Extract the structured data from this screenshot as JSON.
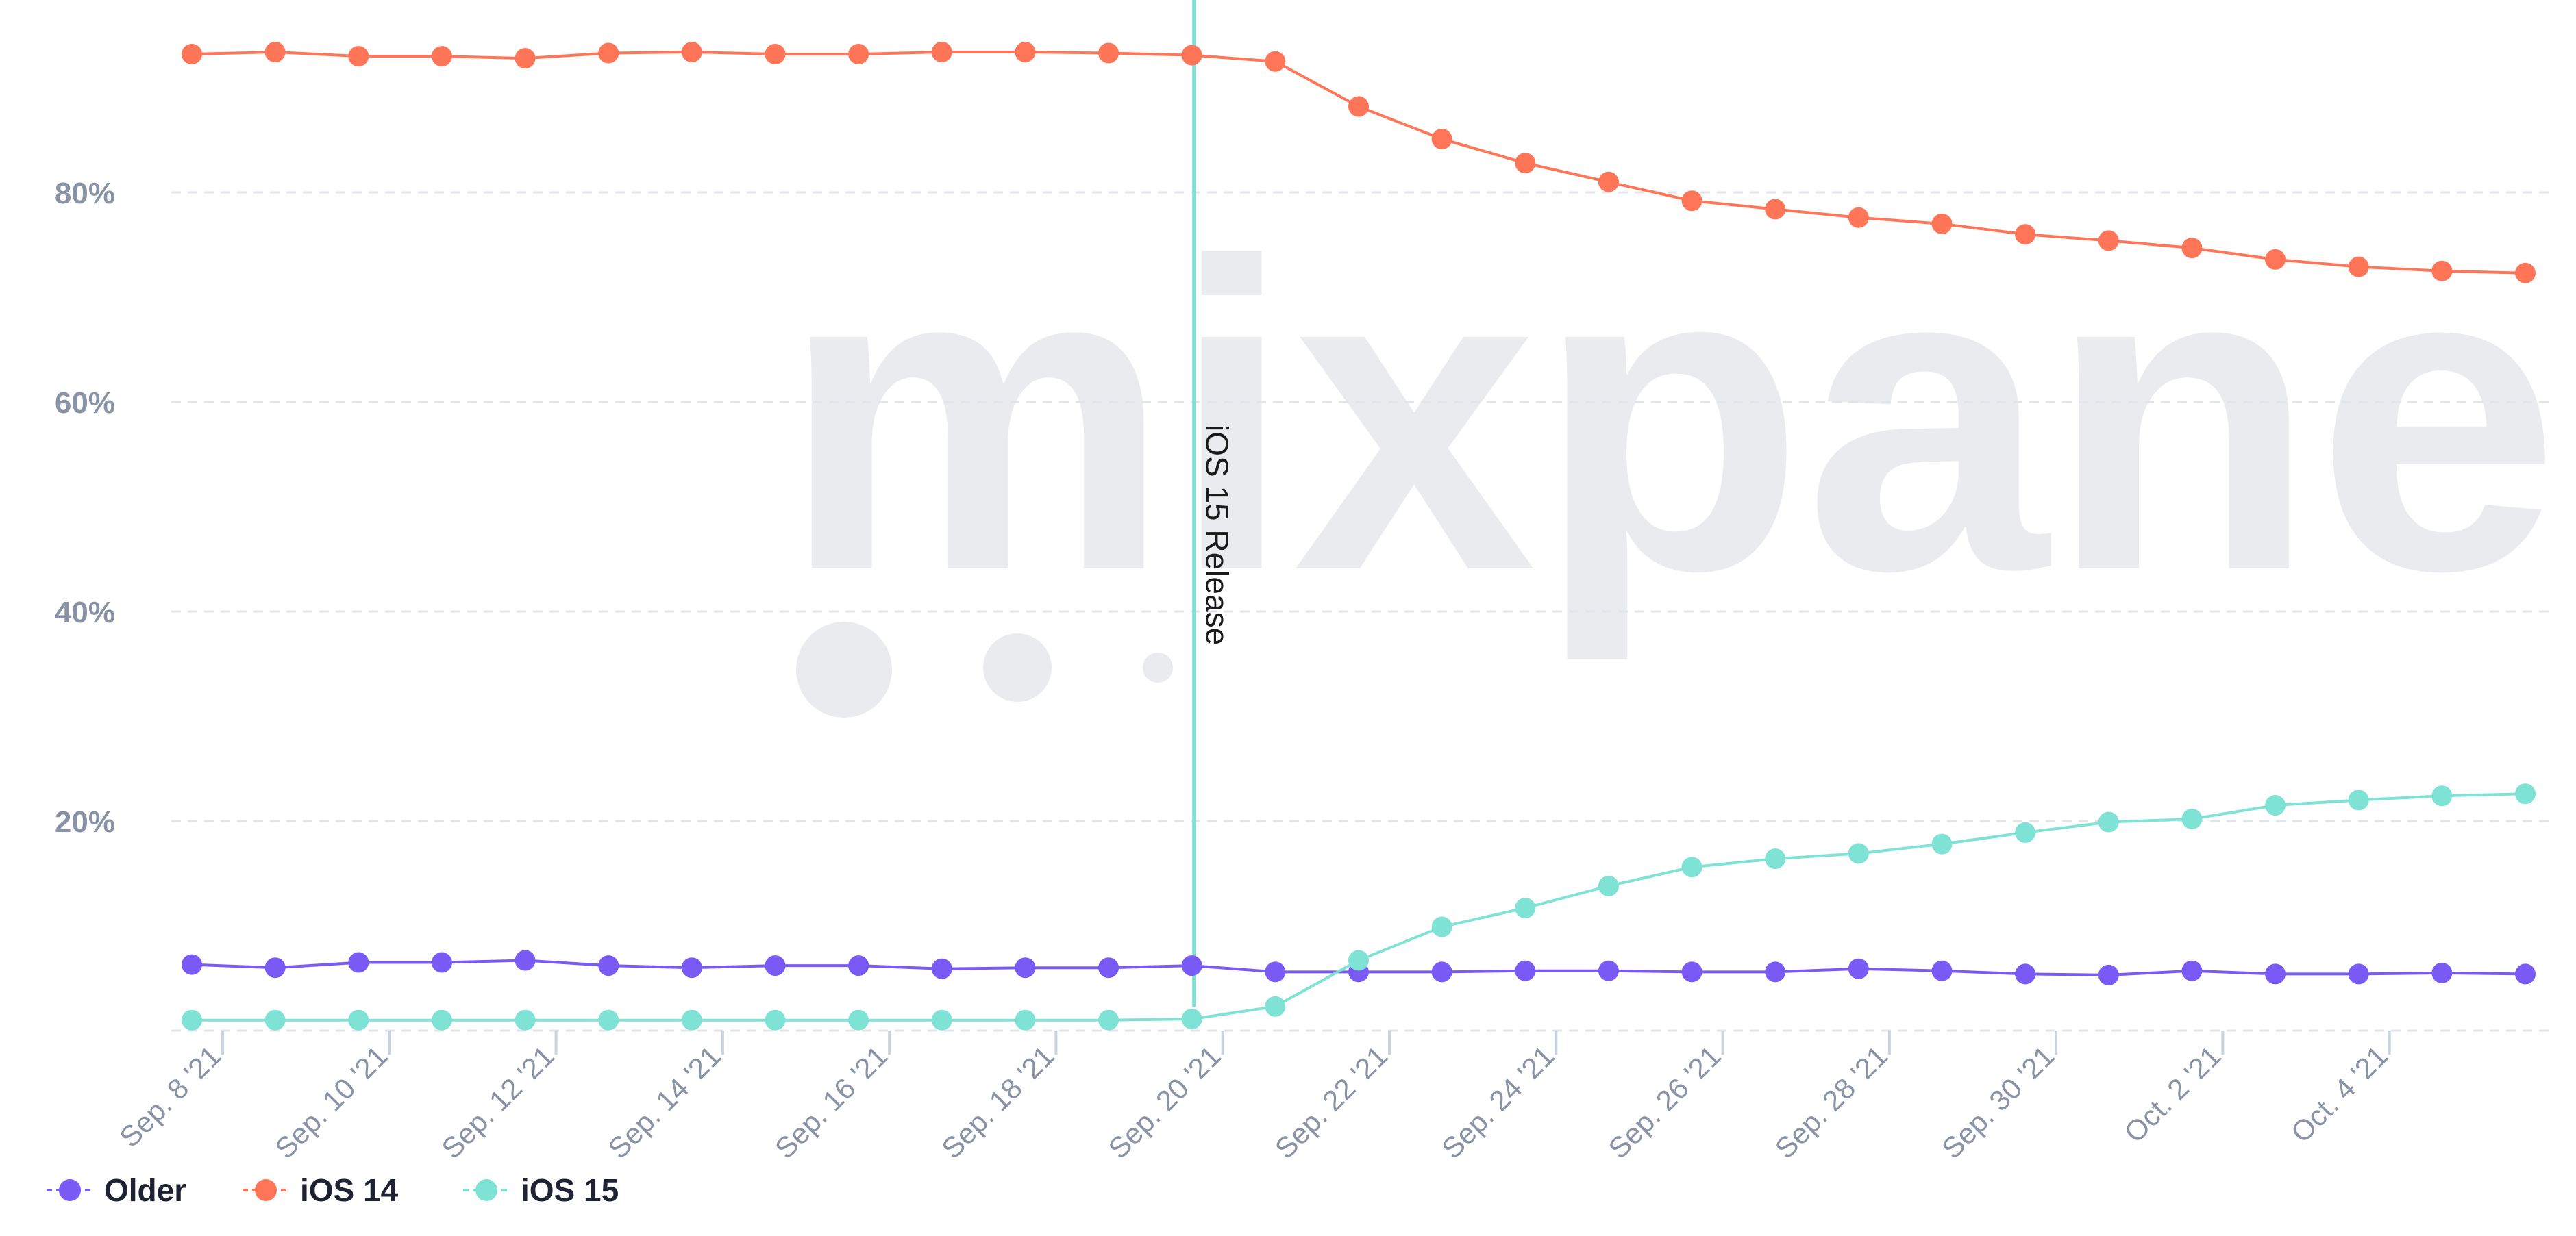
{
  "watermark": {
    "text": "mixpanel"
  },
  "annotation": {
    "label": "iOS 15 Release",
    "x": "Sep. 20 '21",
    "color": "#7ee2d4"
  },
  "legend": [
    {
      "label": "Older",
      "color": "#7a5af5"
    },
    {
      "label": "iOS 14",
      "color": "#ff7557"
    },
    {
      "label": "iOS 15",
      "color": "#7ee2d4"
    }
  ],
  "chart_data": {
    "type": "line",
    "title": "",
    "xlabel": "",
    "ylabel": "",
    "ylim": [
      0,
      97
    ],
    "grid": true,
    "legend_position": "bottom-left",
    "y_ticks": [
      {
        "value": 20,
        "label": "20%"
      },
      {
        "value": 40,
        "label": "40%"
      },
      {
        "value": 60,
        "label": "60%"
      },
      {
        "value": 80,
        "label": "80%"
      }
    ],
    "x": [
      "2021-09-08",
      "2021-09-09",
      "2021-09-10",
      "2021-09-11",
      "2021-09-12",
      "2021-09-13",
      "2021-09-14",
      "2021-09-15",
      "2021-09-16",
      "2021-09-17",
      "2021-09-18",
      "2021-09-19",
      "2021-09-20",
      "2021-09-21",
      "2021-09-22",
      "2021-09-23",
      "2021-09-24",
      "2021-09-25",
      "2021-09-26",
      "2021-09-27",
      "2021-09-28",
      "2021-09-29",
      "2021-09-30",
      "2021-10-01",
      "2021-10-02",
      "2021-10-03",
      "2021-10-04",
      "2021-10-05",
      "2021-10-06"
    ],
    "x_tick_labels": [
      {
        "x": "2021-09-08",
        "label": "Sep. 8 '21"
      },
      {
        "x": "2021-09-10",
        "label": "Sep. 10 '21"
      },
      {
        "x": "2021-09-12",
        "label": "Sep. 12 '21"
      },
      {
        "x": "2021-09-14",
        "label": "Sep. 14 '21"
      },
      {
        "x": "2021-09-16",
        "label": "Sep. 16 '21"
      },
      {
        "x": "2021-09-18",
        "label": "Sep. 18 '21"
      },
      {
        "x": "2021-09-20",
        "label": "Sep. 20 '21"
      },
      {
        "x": "2021-09-22",
        "label": "Sep. 22 '21"
      },
      {
        "x": "2021-09-24",
        "label": "Sep. 24 '21"
      },
      {
        "x": "2021-09-26",
        "label": "Sep. 26 '21"
      },
      {
        "x": "2021-09-28",
        "label": "Sep. 28 '21"
      },
      {
        "x": "2021-09-30",
        "label": "Sep. 30 '21"
      },
      {
        "x": "2021-10-02",
        "label": "Oct. 2 '21"
      },
      {
        "x": "2021-10-04",
        "label": "Oct. 4 '21"
      }
    ],
    "series": [
      {
        "name": "iOS 14",
        "color": "#ff7557",
        "values": [
          93.2,
          93.4,
          93.0,
          93.0,
          92.8,
          93.3,
          93.4,
          93.2,
          93.2,
          93.4,
          93.4,
          93.3,
          93.1,
          92.5,
          88.2,
          85.1,
          82.8,
          81.0,
          79.2,
          78.4,
          77.6,
          77.0,
          76.0,
          75.4,
          74.7,
          73.6,
          72.9,
          72.5,
          72.3
        ]
      },
      {
        "name": "Older",
        "color": "#7a5af5",
        "values": [
          6.3,
          6.0,
          6.5,
          6.5,
          6.7,
          6.2,
          6.0,
          6.2,
          6.2,
          5.9,
          6.0,
          6.0,
          6.2,
          5.6,
          5.6,
          5.6,
          5.7,
          5.7,
          5.6,
          5.6,
          5.9,
          5.7,
          5.4,
          5.3,
          5.7,
          5.4,
          5.4,
          5.5,
          5.4
        ]
      },
      {
        "name": "iOS 15",
        "color": "#7ee2d4",
        "values": [
          1.0,
          1.0,
          1.0,
          1.0,
          1.0,
          1.0,
          1.0,
          1.0,
          1.0,
          1.0,
          1.0,
          1.0,
          1.1,
          2.3,
          6.7,
          9.9,
          11.7,
          13.8,
          15.6,
          16.4,
          16.9,
          17.8,
          18.9,
          19.9,
          20.2,
          21.5,
          22.0,
          22.4,
          22.6
        ]
      }
    ]
  }
}
